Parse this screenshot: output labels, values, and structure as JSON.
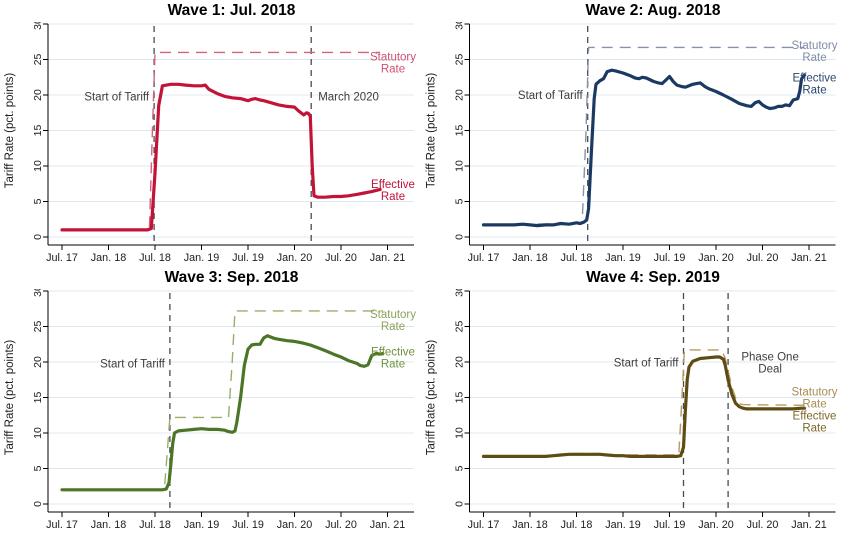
{
  "figure": {
    "background": "#ffffff"
  },
  "axes": {
    "y_title": "Tariff Rate (pct. points)",
    "y_ticks": [
      0,
      5,
      10,
      15,
      20,
      25,
      30
    ],
    "ylim": [
      0,
      30
    ],
    "x_ticks": [
      {
        "year": 2017.5,
        "label": "Jul. 17"
      },
      {
        "year": 2018.0,
        "label": "Jan. 18"
      },
      {
        "year": 2018.5,
        "label": "Jul. 18"
      },
      {
        "year": 2019.0,
        "label": "Jan. 19"
      },
      {
        "year": 2019.5,
        "label": "Jul. 19"
      },
      {
        "year": 2020.0,
        "label": "Jan. 20"
      },
      {
        "year": 2020.5,
        "label": "Jul. 20"
      },
      {
        "year": 2021.0,
        "label": "Jan. 21"
      }
    ],
    "grid": true,
    "grid_color": "#dce8f1",
    "axis_color": "#000000",
    "tick_label_color": "#1c1c1c",
    "event_line_color": "#4b4b4b",
    "annotation_color": "#3d3d3d"
  },
  "chart_data": [
    {
      "type": "line",
      "title": "Wave 1: Jul. 2018",
      "ylabel": "Tariff Rate (pct. points)",
      "legend_position": "right-margin",
      "colors": {
        "effective": "#c11438",
        "statutory": "#d4627f",
        "effective_label": "#c11438",
        "statutory_label": "#cb5372"
      },
      "events": [
        {
          "year": 2018.49,
          "lines": [
            "Start of Tariff"
          ],
          "side": "left",
          "y": 19.8
        },
        {
          "year": 2020.18,
          "lines": [
            "March 2020"
          ],
          "side": "right",
          "y": 19.8
        }
      ],
      "series_labels": {
        "statutory": {
          "lines": [
            "Statutory",
            "Rate"
          ],
          "y": 24.6
        },
        "effective": {
          "lines": [
            "Effective",
            "Rate"
          ],
          "y": 6.6
        }
      },
      "series": {
        "statutory": [
          [
            2017.5,
            1
          ],
          [
            2018.44,
            1
          ],
          [
            2018.47,
            14
          ],
          [
            2018.5,
            26
          ],
          [
            2020.92,
            26
          ]
        ],
        "effective": [
          [
            2017.5,
            1
          ],
          [
            2017.75,
            1
          ],
          [
            2018,
            1
          ],
          [
            2018.2,
            1
          ],
          [
            2018.42,
            1
          ],
          [
            2018.46,
            1.2
          ],
          [
            2018.5,
            9
          ],
          [
            2018.54,
            18.5
          ],
          [
            2018.58,
            21.3
          ],
          [
            2018.67,
            21.5
          ],
          [
            2018.75,
            21.5
          ],
          [
            2018.83,
            21.4
          ],
          [
            2018.92,
            21.3
          ],
          [
            2019,
            21.3
          ],
          [
            2019.04,
            21.4
          ],
          [
            2019.08,
            20.8
          ],
          [
            2019.17,
            20.2
          ],
          [
            2019.25,
            19.8
          ],
          [
            2019.33,
            19.6
          ],
          [
            2019.42,
            19.5
          ],
          [
            2019.5,
            19.2
          ],
          [
            2019.54,
            19.4
          ],
          [
            2019.58,
            19.5
          ],
          [
            2019.63,
            19.3
          ],
          [
            2019.67,
            19.2
          ],
          [
            2019.75,
            18.9
          ],
          [
            2019.83,
            18.6
          ],
          [
            2019.92,
            18.4
          ],
          [
            2020,
            18.3
          ],
          [
            2020.04,
            17.8
          ],
          [
            2020.08,
            17.4
          ],
          [
            2020.1,
            17.2
          ],
          [
            2020.13,
            17.5
          ],
          [
            2020.15,
            17.4
          ],
          [
            2020.17,
            17
          ],
          [
            2020.19,
            10
          ],
          [
            2020.21,
            5.8
          ],
          [
            2020.25,
            5.6
          ],
          [
            2020.33,
            5.6
          ],
          [
            2020.42,
            5.7
          ],
          [
            2020.5,
            5.7
          ],
          [
            2020.58,
            5.8
          ],
          [
            2020.67,
            6
          ],
          [
            2020.75,
            6.2
          ],
          [
            2020.83,
            6.4
          ],
          [
            2020.92,
            6.7
          ]
        ]
      }
    },
    {
      "type": "line",
      "title": "Wave 2: Aug. 2018",
      "ylabel": "Tariff Rate (pct. points)",
      "legend_position": "right-margin",
      "colors": {
        "effective": "#1b3a63",
        "statutory": "#8593ab",
        "effective_label": "#29486f",
        "statutory_label": "#7e8ea8"
      },
      "events": [
        {
          "year": 2018.62,
          "lines": [
            "Start of Tariff"
          ],
          "side": "left",
          "y": 20.0
        }
      ],
      "series_labels": {
        "statutory": {
          "lines": [
            "Statutory",
            "Rate"
          ],
          "y": 26.2
        },
        "effective": {
          "lines": [
            "Effective",
            "Rate"
          ],
          "y": 21.6
        }
      },
      "series": {
        "statutory": [
          [
            2017.5,
            1.7
          ],
          [
            2018.56,
            1.9
          ],
          [
            2018.6,
            14
          ],
          [
            2018.63,
            26.7
          ],
          [
            2020.95,
            26.7
          ]
        ],
        "effective": [
          [
            2017.5,
            1.7
          ],
          [
            2017.67,
            1.7
          ],
          [
            2017.83,
            1.7
          ],
          [
            2017.92,
            1.8
          ],
          [
            2018,
            1.7
          ],
          [
            2018.08,
            1.6
          ],
          [
            2018.17,
            1.7
          ],
          [
            2018.25,
            1.7
          ],
          [
            2018.33,
            1.9
          ],
          [
            2018.42,
            1.8
          ],
          [
            2018.5,
            2
          ],
          [
            2018.54,
            1.9
          ],
          [
            2018.58,
            2.1
          ],
          [
            2018.61,
            2.4
          ],
          [
            2018.63,
            4
          ],
          [
            2018.66,
            12
          ],
          [
            2018.69,
            19.5
          ],
          [
            2018.71,
            21.5
          ],
          [
            2018.75,
            22
          ],
          [
            2018.79,
            22.3
          ],
          [
            2018.83,
            23.3
          ],
          [
            2018.88,
            23.5
          ],
          [
            2018.92,
            23.4
          ],
          [
            2019,
            23.1
          ],
          [
            2019.08,
            22.7
          ],
          [
            2019.13,
            22.4
          ],
          [
            2019.17,
            22.3
          ],
          [
            2019.21,
            22.5
          ],
          [
            2019.25,
            22.4
          ],
          [
            2019.33,
            21.9
          ],
          [
            2019.38,
            21.7
          ],
          [
            2019.42,
            21.6
          ],
          [
            2019.46,
            22.1
          ],
          [
            2019.5,
            22.6
          ],
          [
            2019.54,
            21.9
          ],
          [
            2019.58,
            21.4
          ],
          [
            2019.63,
            21.2
          ],
          [
            2019.67,
            21.1
          ],
          [
            2019.71,
            21.3
          ],
          [
            2019.75,
            21.5
          ],
          [
            2019.79,
            21.6
          ],
          [
            2019.83,
            21.7
          ],
          [
            2019.88,
            21.2
          ],
          [
            2019.92,
            20.9
          ],
          [
            2020,
            20.5
          ],
          [
            2020.08,
            20
          ],
          [
            2020.17,
            19.4
          ],
          [
            2020.25,
            18.8
          ],
          [
            2020.33,
            18.5
          ],
          [
            2020.38,
            18.4
          ],
          [
            2020.42,
            18.9
          ],
          [
            2020.46,
            19.1
          ],
          [
            2020.5,
            18.6
          ],
          [
            2020.54,
            18.3
          ],
          [
            2020.58,
            18.1
          ],
          [
            2020.63,
            18.2
          ],
          [
            2020.67,
            18.4
          ],
          [
            2020.71,
            18.4
          ],
          [
            2020.75,
            18.6
          ],
          [
            2020.79,
            18.5
          ],
          [
            2020.83,
            19.3
          ],
          [
            2020.88,
            19.5
          ],
          [
            2020.9,
            20.5
          ],
          [
            2020.92,
            22.3
          ],
          [
            2020.95,
            22.8
          ]
        ]
      }
    },
    {
      "type": "line",
      "title": "Wave 3: Sep. 2018",
      "ylabel": "Tariff Rate (pct. points)",
      "legend_position": "right-margin",
      "colors": {
        "effective": "#4d7527",
        "statutory": "#99ad68",
        "effective_label": "#70923f",
        "statutory_label": "#8ca35a"
      },
      "events": [
        {
          "year": 2018.66,
          "lines": [
            "Start of Tariff"
          ],
          "side": "left",
          "y": 19.8
        }
      ],
      "series_labels": {
        "statutory": {
          "lines": [
            "Statutory",
            "Rate"
          ],
          "y": 25.9
        },
        "effective": {
          "lines": [
            "Effective",
            "Rate"
          ],
          "y": 20.6
        }
      },
      "series": {
        "statutory": [
          [
            2017.5,
            2
          ],
          [
            2018.6,
            2
          ],
          [
            2018.63,
            7
          ],
          [
            2018.66,
            12.2
          ],
          [
            2019.29,
            12.2
          ],
          [
            2019.33,
            20
          ],
          [
            2019.36,
            27.2
          ],
          [
            2020.95,
            27.2
          ]
        ],
        "effective": [
          [
            2017.5,
            2
          ],
          [
            2018,
            2
          ],
          [
            2018.3,
            2
          ],
          [
            2018.58,
            2
          ],
          [
            2018.62,
            2.1
          ],
          [
            2018.65,
            3
          ],
          [
            2018.67,
            5.5
          ],
          [
            2018.69,
            8.5
          ],
          [
            2018.71,
            10
          ],
          [
            2018.75,
            10.3
          ],
          [
            2018.83,
            10.4
          ],
          [
            2018.92,
            10.5
          ],
          [
            2019,
            10.6
          ],
          [
            2019.08,
            10.5
          ],
          [
            2019.17,
            10.5
          ],
          [
            2019.25,
            10.4
          ],
          [
            2019.29,
            10.2
          ],
          [
            2019.33,
            10.1
          ],
          [
            2019.36,
            10.3
          ],
          [
            2019.38,
            11.5
          ],
          [
            2019.42,
            15
          ],
          [
            2019.46,
            19.5
          ],
          [
            2019.5,
            21.8
          ],
          [
            2019.54,
            22.4
          ],
          [
            2019.58,
            22.5
          ],
          [
            2019.63,
            22.5
          ],
          [
            2019.65,
            23
          ],
          [
            2019.67,
            23.4
          ],
          [
            2019.71,
            23.7
          ],
          [
            2019.75,
            23.5
          ],
          [
            2019.79,
            23.3
          ],
          [
            2019.83,
            23.2
          ],
          [
            2019.92,
            23
          ],
          [
            2020,
            22.9
          ],
          [
            2020.08,
            22.7
          ],
          [
            2020.17,
            22.4
          ],
          [
            2020.25,
            22
          ],
          [
            2020.33,
            21.6
          ],
          [
            2020.42,
            21.1
          ],
          [
            2020.5,
            20.7
          ],
          [
            2020.58,
            20.2
          ],
          [
            2020.67,
            19.8
          ],
          [
            2020.71,
            19.5
          ],
          [
            2020.75,
            19.4
          ],
          [
            2020.79,
            19.6
          ],
          [
            2020.83,
            20.9
          ],
          [
            2020.88,
            21.2
          ],
          [
            2020.92,
            21.1
          ],
          [
            2020.95,
            21.2
          ]
        ]
      }
    },
    {
      "type": "line",
      "title": "Wave 4: Sep. 2019",
      "ylabel": "Tariff Rate (pct. points)",
      "legend_position": "right-margin",
      "colors": {
        "effective": "#5e4c13",
        "statutory": "#b49a67",
        "effective_label": "#7d6729",
        "statutory_label": "#a78e53"
      },
      "events": [
        {
          "year": 2019.65,
          "lines": [
            "Start of Tariff"
          ],
          "side": "left",
          "y": 19.9
        },
        {
          "year": 2020.13,
          "lines": [
            "Phase One",
            "Deal"
          ],
          "side": "right",
          "y": 19.9
        }
      ],
      "series_labels": {
        "statutory": {
          "lines": [
            "Statutory",
            "Rate"
          ],
          "y": 15.0
        },
        "effective": {
          "lines": [
            "Effective",
            "Rate"
          ],
          "y": 11.6
        }
      },
      "series": {
        "statutory": [
          [
            2017.5,
            6.8
          ],
          [
            2018.25,
            6.8
          ],
          [
            2018.42,
            7.1
          ],
          [
            2018.75,
            7.1
          ],
          [
            2018.92,
            6.9
          ],
          [
            2019.6,
            6.9
          ],
          [
            2019.63,
            14
          ],
          [
            2019.66,
            21.7
          ],
          [
            2020.06,
            21.7
          ],
          [
            2020.1,
            20.5
          ],
          [
            2020.17,
            16.5
          ],
          [
            2020.23,
            14.2
          ],
          [
            2020.29,
            14
          ],
          [
            2020.95,
            13.9
          ]
        ],
        "effective": [
          [
            2017.5,
            6.7
          ],
          [
            2017.83,
            6.7
          ],
          [
            2018.17,
            6.7
          ],
          [
            2018.25,
            6.8
          ],
          [
            2018.33,
            6.9
          ],
          [
            2018.42,
            7
          ],
          [
            2018.58,
            7
          ],
          [
            2018.75,
            7
          ],
          [
            2018.83,
            6.9
          ],
          [
            2018.92,
            6.8
          ],
          [
            2019,
            6.8
          ],
          [
            2019.08,
            6.7
          ],
          [
            2019.33,
            6.7
          ],
          [
            2019.58,
            6.7
          ],
          [
            2019.62,
            6.8
          ],
          [
            2019.65,
            8
          ],
          [
            2019.67,
            13
          ],
          [
            2019.69,
            17.5
          ],
          [
            2019.71,
            19.3
          ],
          [
            2019.75,
            20.1
          ],
          [
            2019.79,
            20.3
          ],
          [
            2019.83,
            20.5
          ],
          [
            2019.92,
            20.6
          ],
          [
            2020,
            20.7
          ],
          [
            2020.04,
            20.7
          ],
          [
            2020.08,
            20.4
          ],
          [
            2020.1,
            19.5
          ],
          [
            2020.13,
            17.5
          ],
          [
            2020.17,
            15.5
          ],
          [
            2020.21,
            14.2
          ],
          [
            2020.25,
            13.7
          ],
          [
            2020.29,
            13.5
          ],
          [
            2020.33,
            13.4
          ],
          [
            2020.5,
            13.4
          ],
          [
            2020.67,
            13.4
          ],
          [
            2020.83,
            13.4
          ],
          [
            2020.92,
            13.5
          ],
          [
            2020.95,
            13.5
          ]
        ]
      }
    }
  ]
}
